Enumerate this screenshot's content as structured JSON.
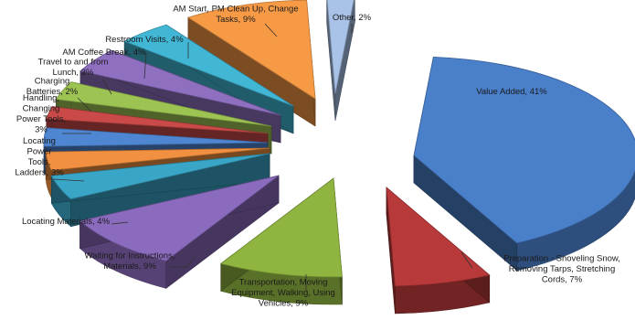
{
  "chart_data": {
    "type": "pie",
    "title": "",
    "style": "3d-exploded",
    "units": "percent",
    "slices": [
      {
        "label_lines": [
          "Value Added, 41%"
        ],
        "value": 41,
        "color": "#4a7fc9"
      },
      {
        "label_lines": [
          "Preparation - Shoveling Snow,",
          "Removing Tarps, Stretching",
          "Cords, 7%"
        ],
        "value": 7,
        "color": "#b8393a"
      },
      {
        "label_lines": [
          "Transportation, Moving",
          "Equipment, Walking, Using",
          "Vehicles, 9%"
        ],
        "value": 9,
        "color": "#8fb440"
      },
      {
        "label_lines": [
          "Waiting for Instructions,",
          "Materials, 9%"
        ],
        "value": 9,
        "color": "#8b6bbd"
      },
      {
        "label_lines": [
          "Locating Materials, 4%"
        ],
        "value": 4,
        "color": "#3aa6c7"
      },
      {
        "label_lines": [
          "Locating",
          "Power",
          "Tools,",
          "Ladders, 3%"
        ],
        "value": 3,
        "color": "#f09040"
      },
      {
        "label_lines": [
          "Handling,",
          "Changing",
          "Power Tools,",
          "3%"
        ],
        "value": 3,
        "color": "#4f86d1"
      },
      {
        "label_lines": [
          "Charging",
          "Batteries, 2%"
        ],
        "value": 2,
        "color": "#c94a48"
      },
      {
        "label_lines": [
          "Travel to and from",
          "Lunch, 3%"
        ],
        "value": 3,
        "color": "#9dc353"
      },
      {
        "label_lines": [
          "AM Coffee Break, 4%"
        ],
        "value": 4,
        "color": "#8e6fc0"
      },
      {
        "label_lines": [
          "Restroom Visits, 4%"
        ],
        "value": 4,
        "color": "#42b7d5"
      },
      {
        "label_lines": [
          "AM Start, PM Clean Up, Change",
          "Tasks, 9%"
        ],
        "value": 9,
        "color": "#f79a46"
      },
      {
        "label_lines": [
          "Other, 2%"
        ],
        "value": 2,
        "color": "#a9c2e8"
      }
    ]
  }
}
